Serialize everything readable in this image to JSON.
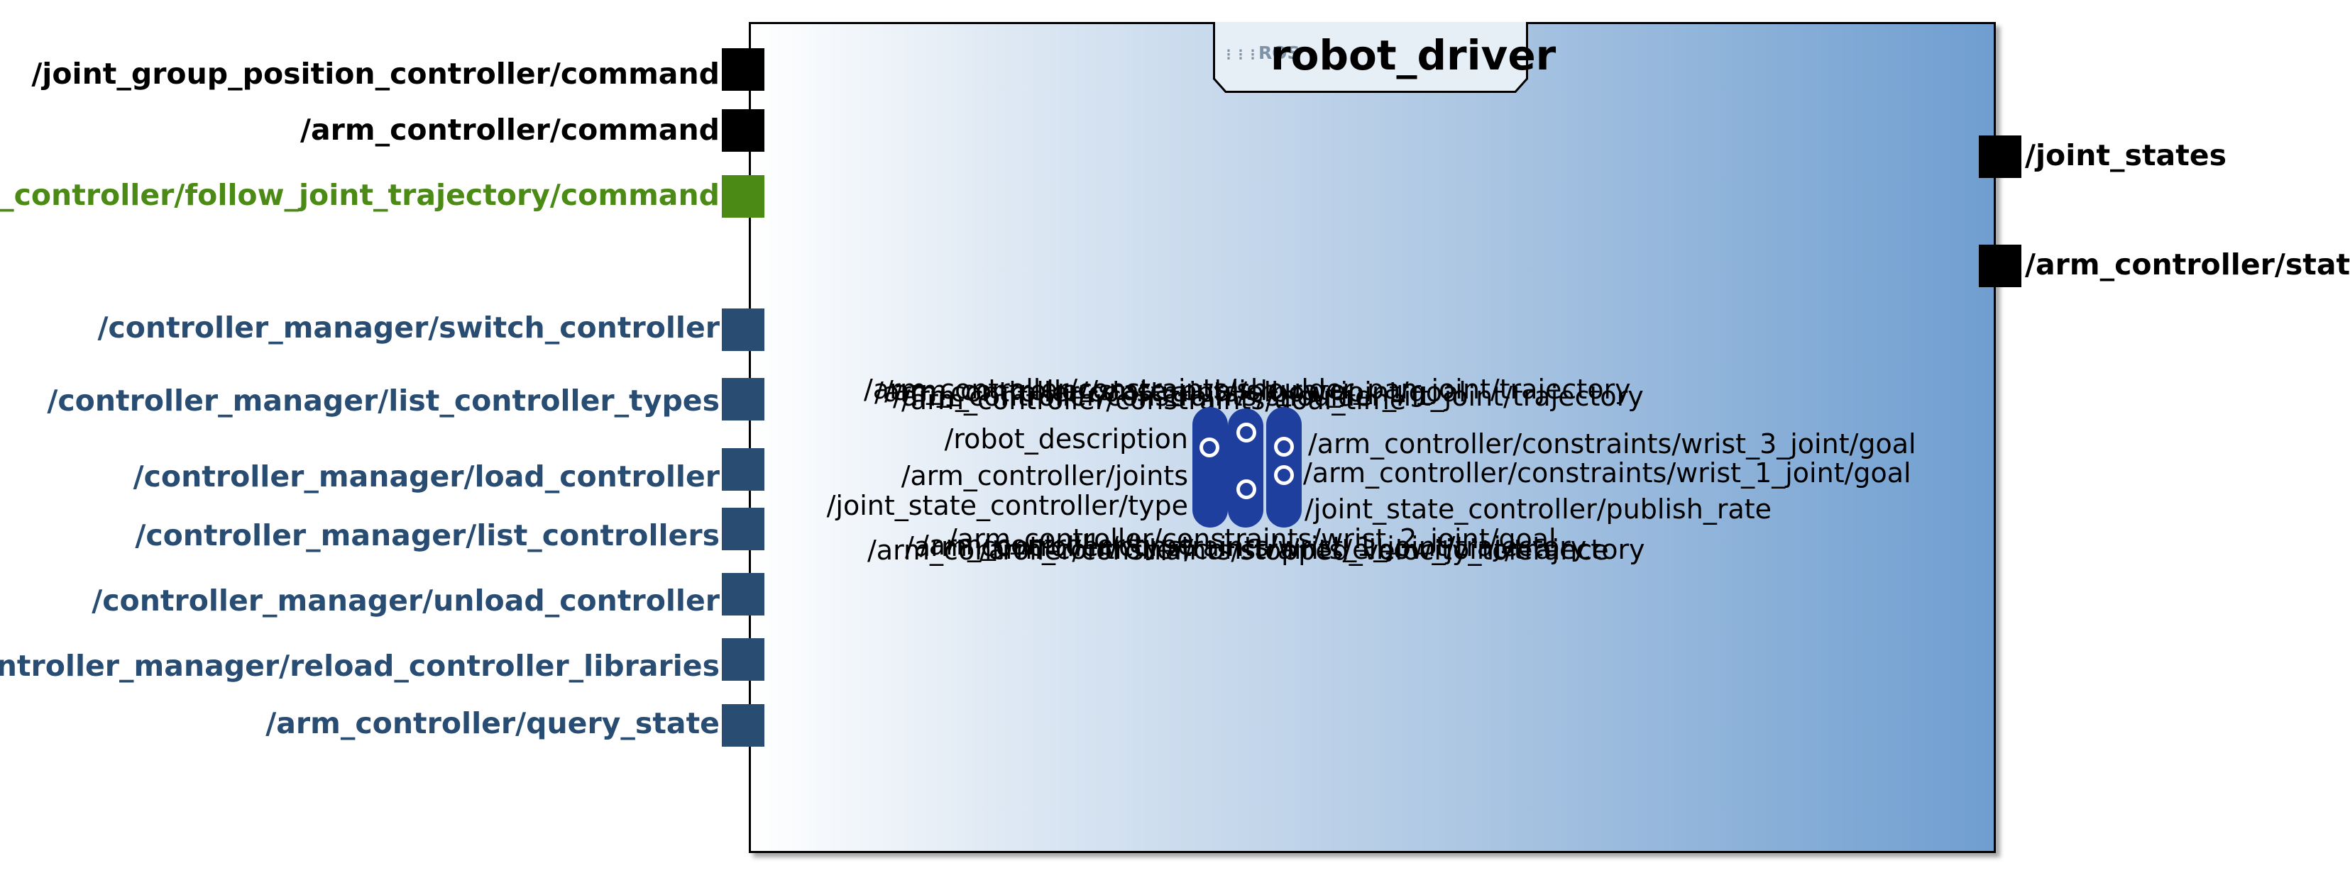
{
  "node": {
    "title": "robot_driver",
    "logo_text": "ROS"
  },
  "left_ports": [
    {
      "label": "/joint_group_position_controller/command",
      "kind": "topic"
    },
    {
      "label": "/arm_controller/command",
      "kind": "topic"
    },
    {
      "label": "/arm_controller/follow_joint_trajectory/command",
      "kind": "action"
    },
    {
      "label": "/controller_manager/switch_controller",
      "kind": "service"
    },
    {
      "label": "/controller_manager/list_controller_types",
      "kind": "service"
    },
    {
      "label": "/controller_manager/load_controller",
      "kind": "service"
    },
    {
      "label": "/controller_manager/list_controllers",
      "kind": "service"
    },
    {
      "label": "/controller_manager/unload_controller",
      "kind": "service"
    },
    {
      "label": "/controller_manager/reload_controller_libraries",
      "kind": "service"
    },
    {
      "label": "/arm_controller/query_state",
      "kind": "service"
    }
  ],
  "right_ports": [
    {
      "label": "/joint_states",
      "kind": "topic"
    },
    {
      "label": "/arm_controller/state",
      "kind": "topic"
    }
  ],
  "parameters": {
    "left": [
      "/robot_description",
      "/arm_controller/joints",
      "/joint_state_controller/type"
    ],
    "right": [
      "/arm_controller/constraints/wrist_3_joint/goal",
      "/arm_controller/constraints/wrist_1_joint/goal",
      "/joint_state_controller/publish_rate"
    ],
    "top_overlap": [
      "/arm_controller/constraints/shoulder_pan_joint/trajectory",
      "/arm_controller/constraints/elbow_joint/goal",
      "/arm_controller/state_publish_rate",
      "/arm_controller/constraints/shoulder_lift_joint/trajectory",
      "/arm_controller/constraints/goal_time"
    ],
    "bottom_overlap": [
      "/arm_controller/constraints/wrist_2_joint/goal",
      "/arm_controller/constraints/wrist_1_joint/trajectory",
      "/arm_controller/type",
      "/arm_controller/constraints/stopped_velocity_tolerance",
      "/arm_controller/constraints/elbow_joint/trajectory"
    ]
  },
  "colors": {
    "topic": "#000000",
    "action": "#4b8a15",
    "service": "#284c72",
    "parameter": "#1f3f9e"
  }
}
